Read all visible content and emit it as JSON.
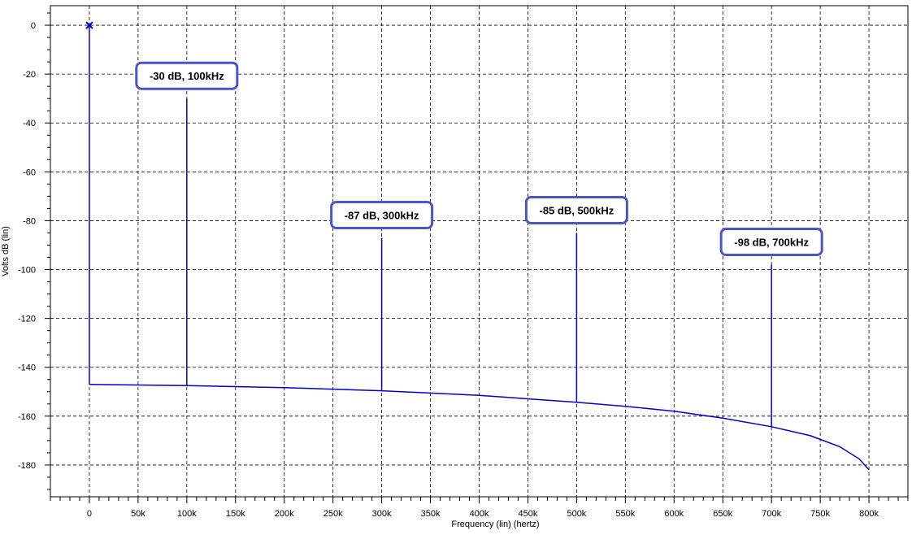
{
  "chart_data": {
    "type": "line",
    "title": "",
    "xlabel": "Frequency (lin) (hertz)",
    "ylabel": "Volts dB (lin)",
    "xlim": [
      -40000,
      840000
    ],
    "ylim": [
      -193,
      8
    ],
    "grid": true,
    "x_ticks": [
      0,
      50000,
      100000,
      150000,
      200000,
      250000,
      300000,
      350000,
      400000,
      450000,
      500000,
      550000,
      600000,
      650000,
      700000,
      750000,
      800000
    ],
    "x_tick_labels": [
      "0",
      "50k",
      "100k",
      "150k",
      "200k",
      "250k",
      "300k",
      "350k",
      "400k",
      "450k",
      "500k",
      "550k",
      "600k",
      "650k",
      "700k",
      "750k",
      "800k"
    ],
    "y_ticks": [
      0,
      -20,
      -40,
      -60,
      -80,
      -100,
      -120,
      -140,
      -160,
      -180
    ],
    "y_tick_labels": [
      "0",
      "-20",
      "-40",
      "-60",
      "-80",
      "-100",
      "-120",
      "-140",
      "-160",
      "-180"
    ],
    "series": [
      {
        "color": "#0000cc",
        "noise_floor": {
          "x": [
            0,
            100000,
            200000,
            300000,
            400000,
            500000,
            550000,
            600000,
            650000,
            700000,
            740000,
            770000,
            790000,
            800000
          ],
          "y": [
            -147,
            -147.5,
            -148.3,
            -149.6,
            -151.5,
            -154.3,
            -156,
            -158,
            -160.8,
            -164.3,
            -168,
            -172.5,
            -177.5,
            -182
          ]
        },
        "spikes": [
          {
            "x": 0,
            "y": 0
          },
          {
            "x": 100000,
            "y": -30
          },
          {
            "x": 300000,
            "y": -87
          },
          {
            "x": 500000,
            "y": -85
          },
          {
            "x": 700000,
            "y": -98
          }
        ]
      }
    ],
    "annotations": [
      {
        "text": "-30 dB, 100kHz",
        "x": 100000,
        "y": -30
      },
      {
        "text": "-87 dB, 300kHz",
        "x": 300000,
        "y": -87
      },
      {
        "text": "-85 dB, 500kHz",
        "x": 500000,
        "y": -85
      },
      {
        "text": "-98 dB, 700kHz",
        "x": 700000,
        "y": -98
      }
    ],
    "colors": {
      "trace": "#0000cc",
      "annotation_border": "#4a56c8",
      "grid": "#000000",
      "background": "#ffffff"
    }
  }
}
